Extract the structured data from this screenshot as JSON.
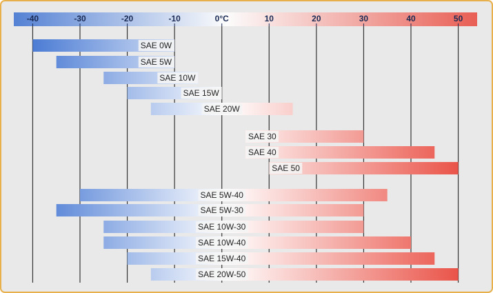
{
  "chart_data": {
    "type": "range_bar",
    "categories": [
      "SAE 0W",
      "SAE 5W",
      "SAE 10W",
      "SAE 15W",
      "SAE 20W",
      "SAE 30",
      "SAE 40",
      "SAE 50",
      "SAE 5W-40",
      "SAE 5W-30",
      "SAE 10W-30",
      "SAE 10W-40",
      "SAE 15W-40",
      "SAE 20W-50"
    ],
    "low": [
      -40,
      -35,
      -25,
      -20,
      -15,
      5,
      5,
      10,
      -30,
      -35,
      -25,
      -25,
      -20,
      -15
    ],
    "high": [
      -10,
      -10,
      -5,
      0,
      15,
      30,
      45,
      50,
      35,
      30,
      30,
      40,
      45,
      50
    ],
    "xlim": [
      -44,
      54
    ],
    "xticks": [
      -40,
      -30,
      -20,
      -10,
      {
        "value": 0,
        "label": "0°C"
      },
      10,
      20,
      30,
      40,
      50
    ],
    "grid": true,
    "colors": [
      "#3a6fd0",
      "#ffffff",
      "#e8463a"
    ]
  }
}
